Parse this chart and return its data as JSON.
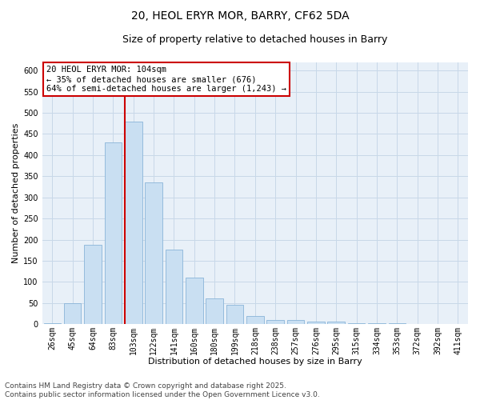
{
  "title": "20, HEOL ERYR MOR, BARRY, CF62 5DA",
  "subtitle": "Size of property relative to detached houses in Barry",
  "xlabel": "Distribution of detached houses by size in Barry",
  "ylabel": "Number of detached properties",
  "categories": [
    "26sqm",
    "45sqm",
    "64sqm",
    "83sqm",
    "103sqm",
    "122sqm",
    "141sqm",
    "160sqm",
    "180sqm",
    "199sqm",
    "218sqm",
    "238sqm",
    "257sqm",
    "276sqm",
    "295sqm",
    "315sqm",
    "334sqm",
    "353sqm",
    "372sqm",
    "392sqm",
    "411sqm"
  ],
  "values": [
    2,
    50,
    188,
    430,
    480,
    335,
    177,
    110,
    62,
    46,
    20,
    10,
    10,
    7,
    7,
    3,
    3,
    2,
    1,
    1,
    1
  ],
  "bar_color": "#c9dff2",
  "bar_edgecolor": "#8ab4d8",
  "red_line_index": 4,
  "annotation_text": "20 HEOL ERYR MOR: 104sqm\n← 35% of detached houses are smaller (676)\n64% of semi-detached houses are larger (1,243) →",
  "annotation_box_color": "#ffffff",
  "annotation_box_edgecolor": "#cc0000",
  "ylim": [
    0,
    620
  ],
  "yticks": [
    0,
    50,
    100,
    150,
    200,
    250,
    300,
    350,
    400,
    450,
    500,
    550,
    600
  ],
  "grid_color": "#c8d8e8",
  "background_color": "#e8f0f8",
  "footer_text": "Contains HM Land Registry data © Crown copyright and database right 2025.\nContains public sector information licensed under the Open Government Licence v3.0.",
  "title_fontsize": 10,
  "subtitle_fontsize": 9,
  "axis_label_fontsize": 8,
  "tick_fontsize": 7,
  "annotation_fontsize": 7.5,
  "footer_fontsize": 6.5
}
